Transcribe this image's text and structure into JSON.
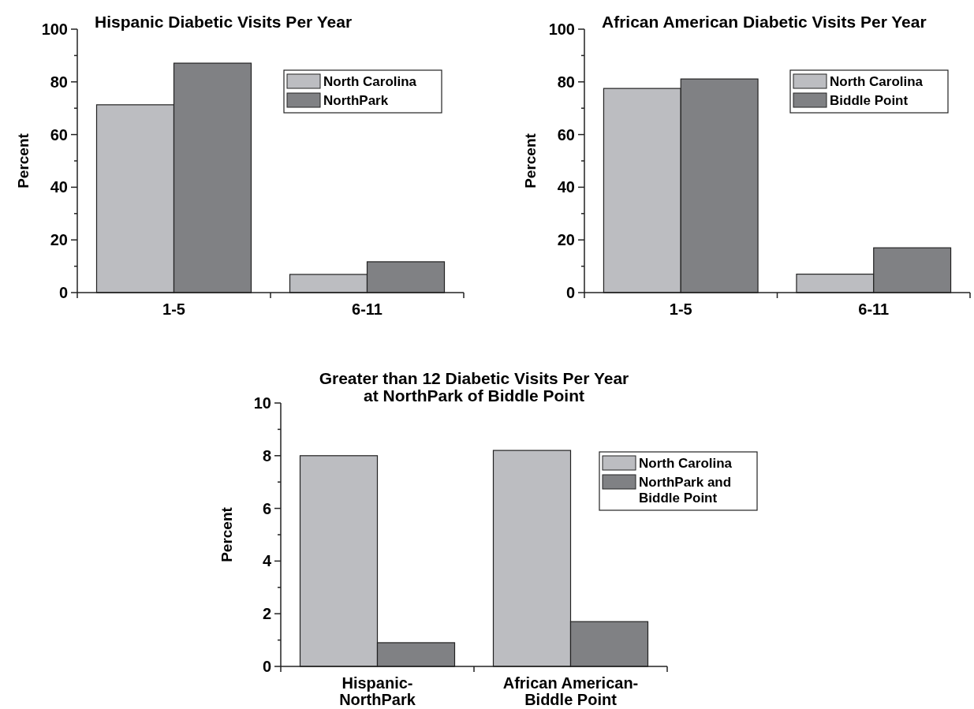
{
  "chart_data": [
    {
      "type": "bar",
      "title": "Hispanic Diabetic Visits Per Year",
      "ylabel": "Percent",
      "categories": [
        "1-5",
        "6-11"
      ],
      "series": [
        {
          "name": "North Carolina",
          "color": "#bcbdc1",
          "values": [
            71.3,
            6.9
          ]
        },
        {
          "name": "NorthPark",
          "color": "#808184",
          "values": [
            87.1,
            11.7
          ]
        }
      ],
      "ylim": [
        0,
        100
      ],
      "yticks": [
        0,
        {
          "value": 10,
          "label": null
        },
        20,
        {
          "value": 30,
          "label": null
        },
        40,
        {
          "value": 50,
          "label": null
        },
        60,
        {
          "value": 70,
          "label": null
        },
        80,
        {
          "value": 90,
          "label": null
        },
        100
      ],
      "legend": "top right"
    },
    {
      "type": "bar",
      "title": "African American Diabetic Visits Per Year",
      "ylabel": "Percent",
      "categories": [
        "1-5",
        "6-11"
      ],
      "series": [
        {
          "name": "North Carolina",
          "color": "#bcbdc1",
          "values": [
            77.5,
            7
          ]
        },
        {
          "name": "Biddle Point",
          "color": "#808184",
          "values": [
            81.1,
            17
          ]
        }
      ],
      "ylim": [
        0,
        100
      ],
      "yticks": [
        0,
        {
          "value": 10,
          "label": null
        },
        20,
        {
          "value": 30,
          "label": null
        },
        40,
        {
          "value": 50,
          "label": null
        },
        60,
        {
          "value": 70,
          "label": null
        },
        80,
        {
          "value": 90,
          "label": null
        },
        100
      ],
      "legend": "top right"
    },
    {
      "type": "bar",
      "title": "Greater than 12 Diabetic Visits Per Year\nat NorthPark of Biddle Point",
      "ylabel": "Percent",
      "categories": [
        "Hispanic-\nNorthPark",
        "African American-\nBiddle Point"
      ],
      "series": [
        {
          "name": "North Carolina",
          "color": "#bcbdc1",
          "values": [
            8.0,
            8.2
          ]
        },
        {
          "name": "NorthPark and\nBiddle Point",
          "color": "#808184",
          "values": [
            0.9,
            1.7
          ]
        }
      ],
      "ylim": [
        0,
        10
      ],
      "yticks": [
        0,
        {
          "value": 1,
          "label": null
        },
        2,
        {
          "value": 3,
          "label": null
        },
        4,
        {
          "value": 5,
          "label": null
        },
        6,
        {
          "value": 7,
          "label": null
        },
        8,
        {
          "value": 9,
          "label": null
        },
        10
      ],
      "legend": "right"
    }
  ]
}
